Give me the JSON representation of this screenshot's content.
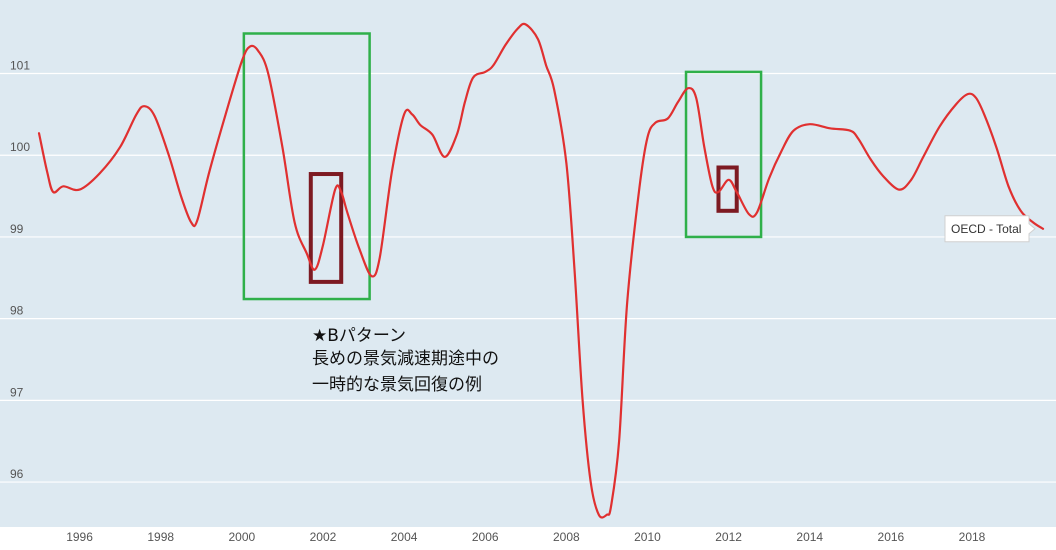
{
  "chart_data": {
    "type": "line",
    "title": "",
    "xlabel": "",
    "ylabel": "",
    "xlim": [
      1995.0,
      2019.75
    ],
    "ylim": [
      95.45,
      101.9
    ],
    "y_ticks": [
      96,
      97,
      98,
      99,
      100,
      101
    ],
    "x_ticks": [
      1996,
      1998,
      2000,
      2002,
      2004,
      2006,
      2008,
      2010,
      2012,
      2014,
      2016,
      2018
    ],
    "grid": "horizontal",
    "background_color": "#dde9f1",
    "line_color": "#e03030",
    "series": [
      {
        "name": "OECD - Total",
        "x": [
          1995.0,
          1995.2,
          1995.35,
          1995.6,
          1996.0,
          1996.5,
          1997.0,
          1997.4,
          1997.6,
          1997.85,
          1998.2,
          1998.5,
          1998.75,
          1998.9,
          1999.2,
          1999.6,
          2000.0,
          2000.2,
          2000.4,
          2000.65,
          2001.0,
          2001.3,
          2001.6,
          2001.8,
          2002.0,
          2002.3,
          2002.45,
          2002.6,
          2002.9,
          2003.2,
          2003.4,
          2003.7,
          2004.0,
          2004.2,
          2004.4,
          2004.7,
          2005.0,
          2005.3,
          2005.5,
          2005.7,
          2006.0,
          2006.2,
          2006.5,
          2006.8,
          2007.0,
          2007.3,
          2007.5,
          2007.7,
          2008.0,
          2008.2,
          2008.4,
          2008.6,
          2008.8,
          2009.0,
          2009.1,
          2009.3,
          2009.5,
          2009.8,
          2010.0,
          2010.2,
          2010.5,
          2010.75,
          2011.0,
          2011.2,
          2011.4,
          2011.6,
          2011.75,
          2012.0,
          2012.2,
          2012.5,
          2012.7,
          2013.0,
          2013.3,
          2013.6,
          2014.0,
          2014.5,
          2015.0,
          2015.2,
          2015.5,
          2015.8,
          2016.2,
          2016.5,
          2016.8,
          2017.2,
          2017.6,
          2017.9,
          2018.1,
          2018.3,
          2018.6,
          2018.9,
          2019.2,
          2019.5,
          2019.75
        ],
        "values": [
          100.27,
          99.8,
          99.55,
          99.62,
          99.58,
          99.78,
          100.1,
          100.5,
          100.6,
          100.48,
          100.0,
          99.5,
          99.18,
          99.2,
          99.8,
          100.5,
          101.15,
          101.33,
          101.28,
          101.0,
          100.1,
          99.18,
          98.8,
          98.6,
          98.9,
          99.58,
          99.55,
          99.3,
          98.85,
          98.52,
          98.75,
          99.8,
          100.5,
          100.5,
          100.37,
          100.25,
          99.98,
          100.25,
          100.65,
          100.95,
          101.02,
          101.1,
          101.35,
          101.55,
          101.6,
          101.42,
          101.1,
          100.8,
          99.9,
          98.6,
          97.0,
          96.0,
          95.6,
          95.6,
          95.7,
          96.5,
          98.2,
          99.6,
          100.22,
          100.4,
          100.45,
          100.65,
          100.82,
          100.7,
          100.1,
          99.62,
          99.55,
          99.7,
          99.55,
          99.28,
          99.3,
          99.72,
          100.05,
          100.3,
          100.38,
          100.33,
          100.3,
          100.2,
          99.95,
          99.75,
          99.58,
          99.7,
          99.98,
          100.35,
          100.62,
          100.75,
          100.7,
          100.5,
          100.1,
          99.62,
          99.32,
          99.18,
          99.1
        ]
      }
    ],
    "highlight_boxes": [
      {
        "x0": 2000.05,
        "x1": 2003.15,
        "y0": 98.24,
        "y1": 101.49,
        "color": "#2fb04a"
      },
      {
        "x0": 2001.7,
        "x1": 2002.45,
        "y0": 98.45,
        "y1": 99.77,
        "color": "#7d1a22"
      },
      {
        "x0": 2010.95,
        "x1": 2012.8,
        "y0": 99.0,
        "y1": 101.02,
        "color": "#2fb04a"
      },
      {
        "x0": 2011.75,
        "x1": 2012.2,
        "y0": 99.32,
        "y1": 99.85,
        "color": "#7d1a22"
      }
    ],
    "annotation_lines": [
      "★Bパターン",
      "長めの景気減速期途中の",
      "一時的な景気回復の例"
    ],
    "tooltip": {
      "label": "OECD - Total",
      "x": 2019.75,
      "y": 99.1
    }
  }
}
